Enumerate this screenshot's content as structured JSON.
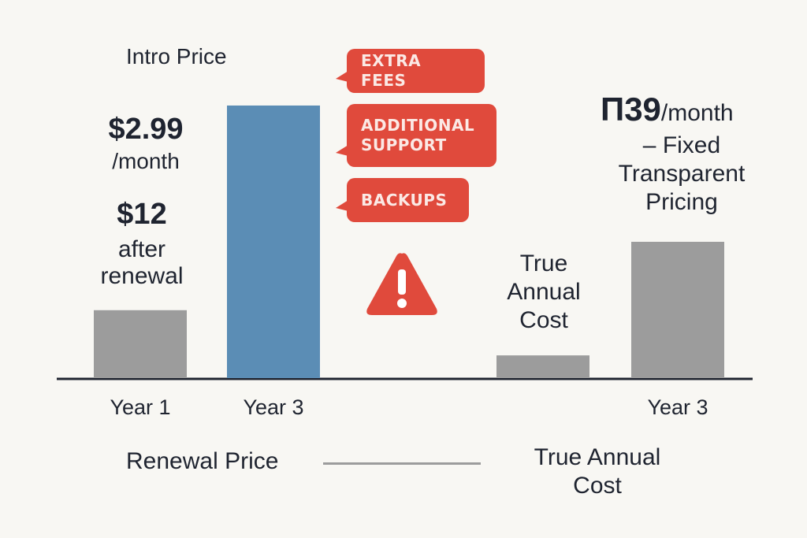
{
  "labels": {
    "intro_price": "Intro Price",
    "intro_amount": "$2.99",
    "intro_unit": "/month",
    "renewal_amount": "$12",
    "renewal_note_1": "after",
    "renewal_note_2": "renewal",
    "fixed_amount": "П39",
    "fixed_unit": "/month",
    "fixed_note_1": "– Fixed",
    "fixed_note_2": "Transparent",
    "fixed_note_3": "Pricing",
    "true_annual_mid_1": "True",
    "true_annual_mid_2": "Annual",
    "true_annual_mid_3": "Cost",
    "legend_renewal": "Renewal Price",
    "legend_true_1": "True Annual",
    "legend_true_2": "Cost"
  },
  "callouts": {
    "extra_fees": "EXTRA FEES",
    "additional_support_1": "ADDITIONAL",
    "additional_support_2": "SUPPORT",
    "backups": "BACKUPS"
  },
  "colors": {
    "gray_bar": "#9c9c9c",
    "blue_bar": "#5b8db5",
    "alert": "#e04a3c",
    "axis": "#1f2430"
  },
  "chart_data": {
    "type": "bar",
    "categories": [
      "Year 1",
      "Year 3",
      "",
      "Year 3"
    ],
    "values": [
      2.99,
      12,
      1,
      6
    ],
    "bar_colors": [
      "#9c9c9c",
      "#5b8db5",
      "#9c9c9c",
      "#9c9c9c"
    ],
    "xlabel": "",
    "ylabel": "",
    "ylim": [
      0,
      12.9
    ],
    "grid": false
  },
  "icons": {
    "warning": "warning-triangle-icon"
  }
}
